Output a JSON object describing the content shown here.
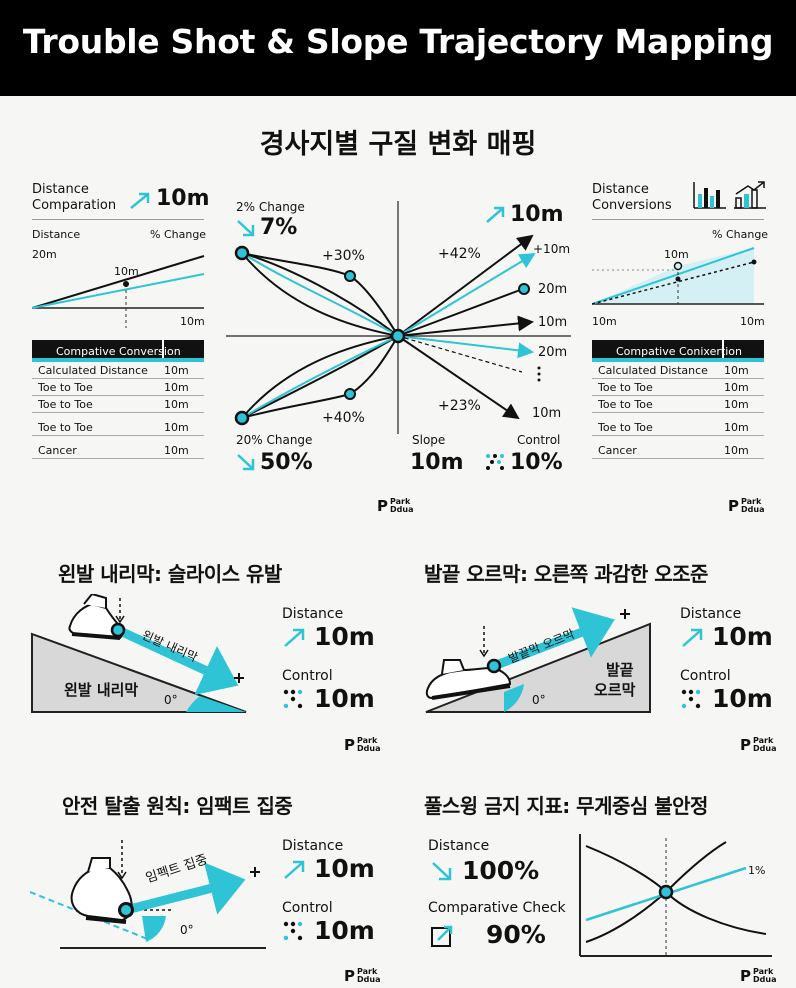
{
  "title": "Trouble Shot & Slope Trajectory Mapping",
  "subtitle": "경사지별 구질 변화 매핑",
  "colors": {
    "accent": "#2ec4d6",
    "dark": "#111111",
    "background": "#f6f6f4"
  },
  "left_panel": {
    "label_line1": "Distance",
    "label_line2": "Comparation",
    "value": "10m",
    "axis_left": "Distance",
    "axis_right": "% Change",
    "y_label": "20m",
    "point_label": "10m",
    "x_label": "10m",
    "table": {
      "header": "Compative Conversion",
      "rows": [
        {
          "key": "Calculated Distance",
          "value": "10m"
        },
        {
          "key": "Toe to Toe",
          "value": "10m"
        },
        {
          "key": "Toe to Toe",
          "value": "10m"
        },
        {
          "key": "Toe to Toe",
          "value": "10m"
        },
        {
          "key": "Cancer",
          "value": "10m"
        }
      ]
    }
  },
  "right_panel": {
    "label_line1": "Distance",
    "label_line2": "Conversions",
    "axis_right": "% Change",
    "point_label": "10m",
    "x_left": "10m",
    "x_right": "10m",
    "table": {
      "header": "Compative Conixertion",
      "rows": [
        {
          "key": "Calculated Distance",
          "value": "10m"
        },
        {
          "key": "Toe to Toe",
          "value": "10m"
        },
        {
          "key": "Toe to Toe",
          "value": "10m"
        },
        {
          "key": "Toe to Toe",
          "value": "10m"
        },
        {
          "key": "Cancer",
          "value": "10m"
        }
      ]
    }
  },
  "center_diagram": {
    "top_change_label": "2% Change",
    "top_change_value": "7%",
    "bottom_change_label": "20% Change",
    "bottom_change_value": "50%",
    "plus30": "+30%",
    "plus40": "+40%",
    "plus42": "+42%",
    "plus23": "+23%",
    "top_right_value": "10m",
    "r1": "+10m",
    "r2": "20m",
    "r3": "10m",
    "r4": "20m",
    "r5": "10m",
    "slope_label": "Slope",
    "slope_value": "10m",
    "control_label": "Control",
    "control_value": "10%"
  },
  "logo": {
    "line1": "Park",
    "line2": "Ddua"
  },
  "sections": {
    "s1": {
      "title": "왼발 내리막: 슬라이스 유발",
      "arrow_text": "왼발 내리막",
      "slope_text": "왼발 내리막",
      "angle": "0°",
      "distance_label": "Distance",
      "distance_value": "10m",
      "control_label": "Control",
      "control_value": "10m"
    },
    "s2": {
      "title": "발끝 오르막: 오른쪽 과감한 오조준",
      "arrow_text": "발끝막 오르막",
      "slope_text_1": "발끝",
      "slope_text_2": "오르막",
      "angle": "0°",
      "distance_label": "Distance",
      "distance_value": "10m",
      "control_label": "Control",
      "control_value": "10m"
    },
    "s3": {
      "title": "안전 탈출 원칙: 임팩트 집중",
      "arrow_text": "임펙트 집중",
      "angle": "0°",
      "distance_label": "Distance",
      "distance_value": "10m",
      "control_label": "Control",
      "control_value": "10m"
    },
    "s4": {
      "title": "풀스윙 금지 지표: 무게중심 불안정",
      "distance_label": "Distance",
      "distance_value": "100%",
      "check_label": "Comparative Check",
      "check_value": "90%",
      "chart_label": "1%"
    }
  }
}
